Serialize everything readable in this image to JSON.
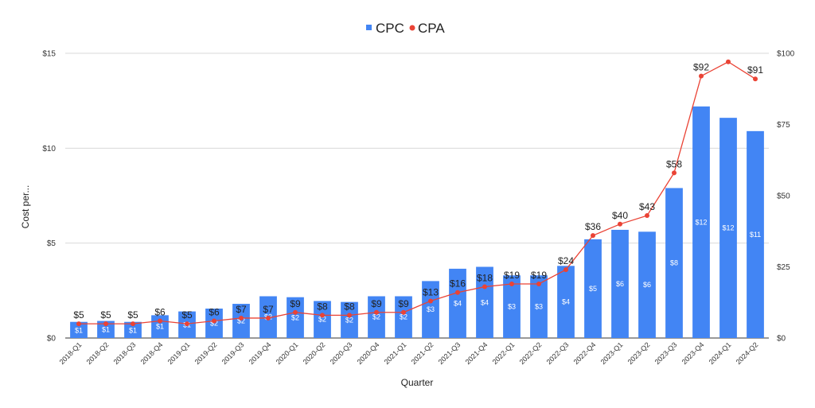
{
  "chart_data": {
    "type": "bar",
    "title": "",
    "xlabel": "Quarter",
    "ylabel": "Cost per...",
    "ylim": [
      0,
      15
    ],
    "y2lim": [
      0,
      100
    ],
    "y_ticks": [
      "$0",
      "$5",
      "$10",
      "$15"
    ],
    "y2_ticks": [
      "$0",
      "$25",
      "$50",
      "$75",
      "$100"
    ],
    "legend_position": "top-center",
    "grid": true,
    "categories": [
      "2018-Q1",
      "2018-Q2",
      "2018-Q3",
      "2018-Q4",
      "2019-Q1",
      "2019-Q2",
      "2019-Q3",
      "2019-Q4",
      "2020-Q1",
      "2020-Q2",
      "2020-Q3",
      "2020-Q4",
      "2021-Q1",
      "2021-Q2",
      "2021-Q3",
      "2021-Q4",
      "2022-Q1",
      "2022-Q2",
      "2022-Q3",
      "2022-Q4",
      "2023-Q1",
      "2023-Q2",
      "2023-Q3",
      "2023-Q4",
      "2024-Q1",
      "2024-Q2"
    ],
    "series": [
      {
        "name": "CPC",
        "type": "bar",
        "axis": "left",
        "color": "#4285f4",
        "values": [
          0.85,
          0.9,
          0.85,
          1.2,
          1.4,
          1.55,
          1.8,
          2.2,
          2.15,
          1.95,
          1.9,
          2.2,
          2.2,
          3.0,
          3.65,
          3.75,
          3.3,
          3.3,
          3.8,
          5.2,
          5.7,
          5.6,
          7.9,
          12.2,
          11.6,
          10.9
        ],
        "labels": [
          "$1",
          "$1",
          "$1",
          "$1",
          "$1",
          "$2",
          "$2",
          "$2",
          "$2",
          "$2",
          "$2",
          "$2",
          "$2",
          "$3",
          "$4",
          "$4",
          "$3",
          "$3",
          "$4",
          "$5",
          "$6",
          "$6",
          "$8",
          "$12",
          "$12",
          "$11"
        ]
      },
      {
        "name": "CPA",
        "type": "line",
        "axis": "right",
        "color": "#ea4335",
        "values": [
          5,
          5,
          5,
          6,
          5,
          6,
          7,
          7,
          9,
          8,
          8,
          9,
          9,
          13,
          16,
          18,
          19,
          19,
          24,
          36,
          40,
          43,
          58,
          92,
          97,
          91
        ],
        "labels": [
          "$5",
          "$5",
          "$5",
          "$6",
          "$5",
          "$6",
          "$7",
          "$7",
          "$9",
          "$8",
          "$8",
          "$9",
          "$9",
          "$13",
          "$16",
          "$18",
          "$19",
          "$19",
          "$24",
          "$36",
          "$40",
          "$43",
          "$58",
          "$92",
          "",
          "$91"
        ]
      }
    ]
  }
}
